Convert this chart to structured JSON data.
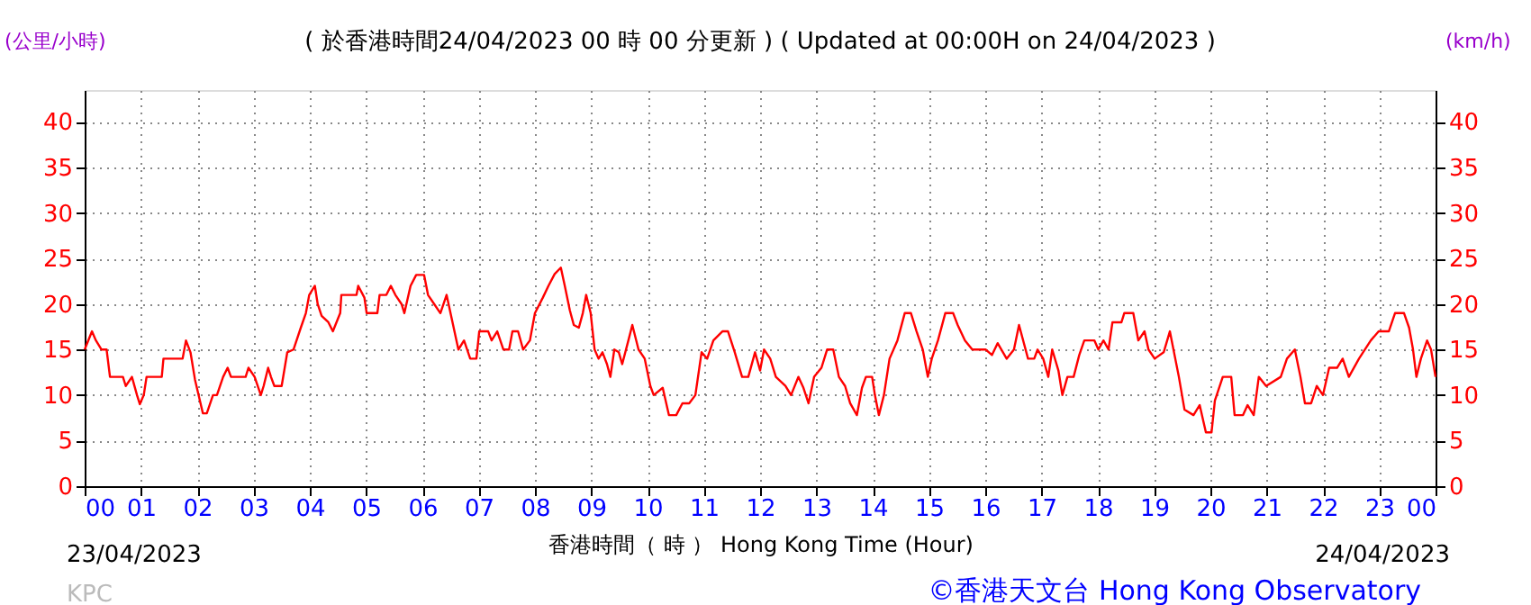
{
  "chart_data": {
    "type": "line",
    "title": "( 於香港時間24/04/2023 00 時 00 分更新 ) ( Updated at 00:00H on 24/04/2023 )",
    "xlabel": "香港時間（ 時 ） Hong Kong Time (Hour)",
    "ylabel": "(公里/小時)",
    "y2label": "(km/h)",
    "annotations": [
      "23/04/2023",
      "24/04/2023",
      "KPC",
      "©香港天文台 Hong Kong Observatory"
    ],
    "x": [
      0,
      0.13,
      0.2,
      0.3,
      0.39,
      0.45,
      0.68,
      0.73,
      0.84,
      0.93,
      0.98,
      1.05,
      1.1,
      1.37,
      1.4,
      1.74,
      1.8,
      1.88,
      1.96,
      2.1,
      2.17,
      2.28,
      2.35,
      2.46,
      2.54,
      2.6,
      2.86,
      2.91,
      3.02,
      3.13,
      3.18,
      3.26,
      3.31,
      3.37,
      3.5,
      3.6,
      3.71,
      3.84,
      3.93,
      3.99,
      4.09,
      4.14,
      4.21,
      4.33,
      4.41,
      4.54,
      4.56,
      4.83,
      4.86,
      4.97,
      5.01,
      5.2,
      5.24,
      5.36,
      5.44,
      5.52,
      5.63,
      5.68,
      5.79,
      5.89,
      6.03,
      6.1,
      6.21,
      6.32,
      6.43,
      6.5,
      6.64,
      6.74,
      6.85,
      6.96,
      7.01,
      7.17,
      7.23,
      7.33,
      7.44,
      7.54,
      7.6,
      7.7,
      7.79,
      7.91,
      8.0,
      8.14,
      8.24,
      8.35,
      8.46,
      8.53,
      8.62,
      8.69,
      8.78,
      8.85,
      8.91,
      8.99,
      9.06,
      9.13,
      9.2,
      9.28,
      9.34,
      9.41,
      9.49,
      9.55,
      9.66,
      9.73,
      9.84,
      9.95,
      10.05,
      10.11,
      10.27,
      10.38,
      10.51,
      10.62,
      10.74,
      10.85,
      10.96,
      11.06,
      11.17,
      11.33,
      11.43,
      11.55,
      11.68,
      11.79,
      11.91,
      12.0,
      12.07,
      12.18,
      12.28,
      12.45,
      12.55,
      12.68,
      12.77,
      12.86,
      12.96,
      13.09,
      13.19,
      13.3,
      13.4,
      13.51,
      13.6,
      13.72,
      13.81,
      13.88,
      13.99,
      14.04,
      14.11,
      14.2,
      14.3,
      14.44,
      14.57,
      14.68,
      14.78,
      14.89,
      14.98,
      15.05,
      15.16,
      15.29,
      15.43,
      15.51,
      15.64,
      15.77,
      16.01,
      16.12,
      16.22,
      16.38,
      16.51,
      16.6,
      16.76,
      16.87,
      16.93,
      17.03,
      17.12,
      17.19,
      17.3,
      17.37,
      17.46,
      17.57,
      17.67,
      17.76,
      17.94,
      18.01,
      18.1,
      18.19,
      18.26,
      18.42,
      18.47,
      18.63,
      18.72,
      18.83,
      18.9,
      19.01,
      19.17,
      19.28,
      19.44,
      19.54,
      19.7,
      19.81,
      19.92,
      20.02,
      20.08,
      20.22,
      20.37,
      20.43,
      20.58,
      20.66,
      20.77,
      20.86,
      20.99,
      21.25,
      21.36,
      21.5,
      21.6,
      21.68,
      21.79,
      21.89,
      22.0,
      22.11,
      22.25,
      22.35,
      22.46,
      22.64,
      22.85,
      22.99,
      23.17,
      23.28,
      23.44,
      23.53,
      23.6,
      23.66,
      23.74,
      23.85,
      23.92,
      24.0
    ],
    "series": [
      {
        "color": "#ff0000",
        "values": [
          15,
          17,
          16,
          15,
          15,
          12,
          12,
          11,
          12,
          10,
          9,
          10,
          12,
          12,
          14,
          14,
          16,
          14.7,
          11.7,
          8,
          8,
          10,
          10,
          12,
          13,
          12,
          12,
          13,
          12,
          10,
          11,
          13,
          12,
          11,
          11,
          14.7,
          15,
          17.4,
          19,
          21,
          22,
          20,
          18.7,
          18,
          17,
          19,
          21,
          21,
          22,
          20.7,
          19,
          19,
          21,
          21,
          22,
          21,
          20,
          19,
          22,
          23.2,
          23.2,
          21,
          20,
          19,
          21,
          19,
          15,
          16,
          14,
          14,
          17,
          17,
          16,
          17,
          15,
          15,
          17,
          17,
          15,
          16,
          19,
          20.7,
          22,
          23.3,
          24,
          22,
          19.3,
          17.7,
          17.4,
          19,
          21,
          19,
          15,
          14,
          14.7,
          13.4,
          12,
          15,
          14.7,
          13.4,
          16,
          17.7,
          15,
          14,
          11,
          10,
          10.8,
          7.8,
          7.8,
          9.1,
          9.1,
          10,
          14.7,
          14,
          16,
          17,
          17,
          14.7,
          12,
          12,
          14.7,
          12.7,
          15,
          14,
          12,
          11,
          10,
          12,
          10.8,
          9.1,
          12,
          13,
          15,
          15,
          12,
          11,
          9.1,
          7.8,
          10.8,
          12,
          12,
          10,
          7.8,
          10,
          14,
          16,
          19,
          19,
          17,
          15,
          12,
          14,
          16,
          19,
          19,
          17.7,
          16,
          15,
          15,
          14.4,
          15.7,
          14,
          15,
          17.7,
          14,
          14,
          15,
          14,
          12,
          15,
          12.7,
          10,
          12,
          12,
          14.4,
          16,
          16,
          15,
          16,
          15,
          18,
          18,
          19,
          19,
          16,
          17,
          15,
          14,
          14.7,
          17,
          12,
          8.4,
          7.8,
          8.9,
          5.9,
          5.9,
          9.4,
          12,
          12,
          7.8,
          7.8,
          8.9,
          7.8,
          12,
          11,
          12,
          14,
          15,
          12,
          9.1,
          9.1,
          11,
          10,
          13,
          13,
          14,
          12,
          14,
          16,
          17,
          17,
          19,
          19,
          17.4,
          15,
          12,
          14,
          16,
          15,
          12
        ]
      }
    ],
    "xlim": [
      0,
      24
    ],
    "xticks": [
      {
        "value": 0,
        "label": "00"
      },
      {
        "value": 1,
        "label": "01"
      },
      {
        "value": 2,
        "label": "02"
      },
      {
        "value": 3,
        "label": "03"
      },
      {
        "value": 4,
        "label": "04"
      },
      {
        "value": 5,
        "label": "05"
      },
      {
        "value": 6,
        "label": "06"
      },
      {
        "value": 7,
        "label": "07"
      },
      {
        "value": 8,
        "label": "08"
      },
      {
        "value": 9,
        "label": "09"
      },
      {
        "value": 10,
        "label": "10"
      },
      {
        "value": 11,
        "label": "11"
      },
      {
        "value": 12,
        "label": "12"
      },
      {
        "value": 13,
        "label": "13"
      },
      {
        "value": 14,
        "label": "14"
      },
      {
        "value": 15,
        "label": "15"
      },
      {
        "value": 16,
        "label": "16"
      },
      {
        "value": 17,
        "label": "17"
      },
      {
        "value": 18,
        "label": "18"
      },
      {
        "value": 19,
        "label": "19"
      },
      {
        "value": 20,
        "label": "20"
      },
      {
        "value": 21,
        "label": "21"
      },
      {
        "value": 22,
        "label": "22"
      },
      {
        "value": 23,
        "label": "23"
      },
      {
        "value": 24,
        "label": "00"
      }
    ],
    "ylim": [
      0,
      43.5
    ],
    "yticks": [
      0,
      5,
      10,
      15,
      20,
      25,
      30,
      35,
      40
    ],
    "y2lim": [
      0,
      43.5
    ],
    "y2ticks": [
      0,
      5,
      10,
      15,
      20,
      25,
      30,
      35,
      40
    ],
    "grid": true,
    "marker": "none",
    "line_style": "solid"
  }
}
